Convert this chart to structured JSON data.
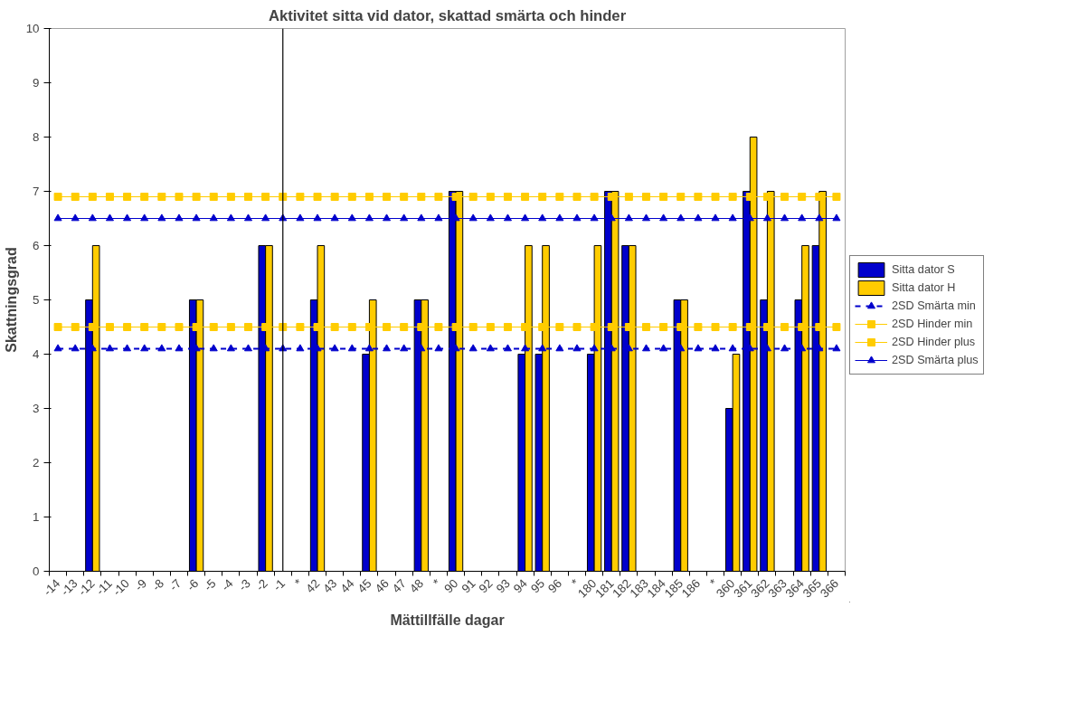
{
  "chart_data": {
    "type": "bar",
    "title": "Aktivitet sitta vid dator, skattad smärta och hinder",
    "xlabel": "Mättillfälle dagar",
    "ylabel": "Skattningsgrad",
    "categories": [
      "-14",
      "-13",
      "-12",
      "-11",
      "-10",
      "-9",
      "-8",
      "-7",
      "-6",
      "-5",
      "-4",
      "-3",
      "-2",
      "-1",
      "*",
      "42",
      "43",
      "44",
      "45",
      "46",
      "47",
      "48",
      "*",
      "90",
      "91",
      "92",
      "93",
      "94",
      "95",
      "96",
      "*",
      "180",
      "181",
      "182",
      "183",
      "184",
      "185",
      "186",
      "*",
      "360",
      "361",
      "362",
      "363",
      "364",
      "365",
      "366"
    ],
    "series": [
      {
        "name": "Sitta dator S",
        "color": "#0000cc",
        "values": [
          null,
          null,
          5,
          null,
          null,
          null,
          null,
          null,
          5,
          null,
          null,
          null,
          6,
          null,
          null,
          5,
          null,
          null,
          4,
          null,
          null,
          5,
          null,
          7,
          null,
          null,
          null,
          4,
          4,
          null,
          null,
          4,
          7,
          6,
          null,
          null,
          5,
          null,
          null,
          3,
          7,
          5,
          null,
          5,
          6,
          null
        ]
      },
      {
        "name": "Sitta dator H",
        "color": "#ffcc00",
        "values": [
          null,
          null,
          6,
          null,
          null,
          null,
          null,
          null,
          5,
          null,
          null,
          null,
          6,
          null,
          null,
          6,
          null,
          null,
          5,
          null,
          null,
          5,
          null,
          7,
          null,
          null,
          null,
          6,
          6,
          null,
          null,
          6,
          7,
          6,
          null,
          null,
          5,
          null,
          null,
          4,
          8,
          7,
          null,
          6,
          7,
          null
        ]
      },
      {
        "name": "2SD Smärta min",
        "type": "line",
        "color": "#0000cc",
        "marker": "triangle",
        "line_style": "dashed",
        "values": [
          4.1,
          4.1,
          4.1,
          4.1,
          4.1,
          4.1,
          4.1,
          4.1,
          4.1,
          4.1,
          4.1,
          4.1,
          4.1,
          4.1,
          4.1,
          4.1,
          4.1,
          4.1,
          4.1,
          4.1,
          4.1,
          4.1,
          4.1,
          4.1,
          4.1,
          4.1,
          4.1,
          4.1,
          4.1,
          4.1,
          4.1,
          4.1,
          4.1,
          4.1,
          4.1,
          4.1,
          4.1,
          4.1,
          4.1,
          4.1,
          4.1,
          4.1,
          4.1,
          4.1,
          4.1,
          4.1
        ]
      },
      {
        "name": "2SD Hinder min",
        "type": "line",
        "color": "#ffcc00",
        "marker": "square",
        "line_style": "solid",
        "values": [
          4.5,
          4.5,
          4.5,
          4.5,
          4.5,
          4.5,
          4.5,
          4.5,
          4.5,
          4.5,
          4.5,
          4.5,
          4.5,
          4.5,
          4.5,
          4.5,
          4.5,
          4.5,
          4.5,
          4.5,
          4.5,
          4.5,
          4.5,
          4.5,
          4.5,
          4.5,
          4.5,
          4.5,
          4.5,
          4.5,
          4.5,
          4.5,
          4.5,
          4.5,
          4.5,
          4.5,
          4.5,
          4.5,
          4.5,
          4.5,
          4.5,
          4.5,
          4.5,
          4.5,
          4.5,
          4.5
        ]
      },
      {
        "name": "2SD Hinder plus",
        "type": "line",
        "color": "#ffcc00",
        "marker": "square",
        "line_style": "solid",
        "values": [
          6.9,
          6.9,
          6.9,
          6.9,
          6.9,
          6.9,
          6.9,
          6.9,
          6.9,
          6.9,
          6.9,
          6.9,
          6.9,
          6.9,
          6.9,
          6.9,
          6.9,
          6.9,
          6.9,
          6.9,
          6.9,
          6.9,
          6.9,
          6.9,
          6.9,
          6.9,
          6.9,
          6.9,
          6.9,
          6.9,
          6.9,
          6.9,
          6.9,
          6.9,
          6.9,
          6.9,
          6.9,
          6.9,
          6.9,
          6.9,
          6.9,
          6.9,
          6.9,
          6.9,
          6.9,
          6.9
        ]
      },
      {
        "name": "2SD Smärta plus",
        "type": "line",
        "color": "#0000cc",
        "marker": "triangle",
        "line_style": "solid",
        "values": [
          6.5,
          6.5,
          6.5,
          6.5,
          6.5,
          6.5,
          6.5,
          6.5,
          6.5,
          6.5,
          6.5,
          6.5,
          6.5,
          6.5,
          6.5,
          6.5,
          6.5,
          6.5,
          6.5,
          6.5,
          6.5,
          6.5,
          6.5,
          6.5,
          6.5,
          6.5,
          6.5,
          6.5,
          6.5,
          6.5,
          6.5,
          6.5,
          6.5,
          6.5,
          6.5,
          6.5,
          6.5,
          6.5,
          6.5,
          6.5,
          6.5,
          6.5,
          6.5,
          6.5,
          6.5,
          6.5
        ]
      }
    ],
    "ref_lines": [
      {
        "axis": "x",
        "value": "-1",
        "color": "#000000"
      }
    ],
    "ylim": [
      0,
      10
    ],
    "yticks": [
      0,
      1,
      2,
      3,
      4,
      5,
      6,
      7,
      8,
      9,
      10
    ],
    "grid": false,
    "legend": "right"
  }
}
